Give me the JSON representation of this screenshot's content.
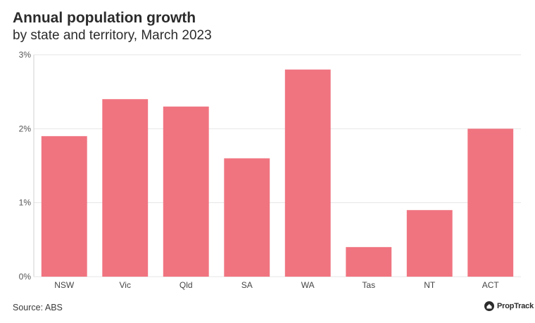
{
  "chart_data": {
    "type": "bar",
    "title": "Annual population growth",
    "subtitle": "by state and territory, March 2023",
    "categories": [
      "NSW",
      "Vic",
      "Qld",
      "SA",
      "WA",
      "Tas",
      "NT",
      "ACT"
    ],
    "values": [
      1.9,
      2.4,
      2.3,
      1.6,
      2.8,
      0.4,
      0.9,
      2.0
    ],
    "value_unit": "%",
    "ylim": [
      0,
      3
    ],
    "yticks": [
      0,
      1,
      2,
      3
    ],
    "ytick_labels": [
      "0%",
      "1%",
      "2%",
      "3%"
    ],
    "xlabel": "",
    "ylabel": "",
    "grid": true,
    "bar_color": "#f07480",
    "grid_color": "#e6e6e6"
  },
  "footer": {
    "source": "Source: ABS",
    "brand": "PropTrack",
    "brand_icon": "house-logo-icon"
  }
}
